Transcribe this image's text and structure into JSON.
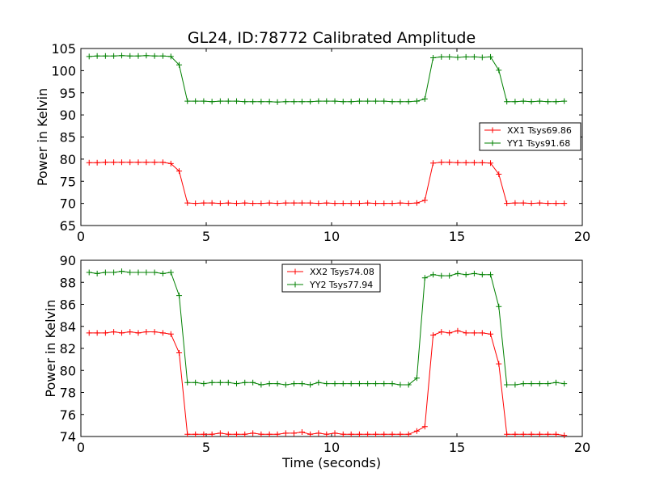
{
  "chart_data": [
    {
      "type": "line",
      "title": "GL24, ID:78772 Calibrated Amplitude",
      "xlabel": "",
      "ylabel": "Power in Kelvin",
      "xlim": [
        0,
        20
      ],
      "ylim": [
        65,
        105
      ],
      "xticks": [
        0,
        5,
        10,
        15,
        20
      ],
      "yticks": [
        65,
        70,
        75,
        80,
        85,
        90,
        95,
        100,
        105
      ],
      "grid": false,
      "legend_position": "center-right",
      "x": [
        0.33,
        0.65,
        0.98,
        1.31,
        1.63,
        1.96,
        2.29,
        2.61,
        2.94,
        3.27,
        3.59,
        3.92,
        4.25,
        4.57,
        4.9,
        5.23,
        5.56,
        5.88,
        6.21,
        6.54,
        6.86,
        7.19,
        7.52,
        7.84,
        8.17,
        8.5,
        8.82,
        9.15,
        9.48,
        9.8,
        10.13,
        10.46,
        10.78,
        11.11,
        11.44,
        11.76,
        12.09,
        12.42,
        12.74,
        13.07,
        13.4,
        13.72,
        14.05,
        14.38,
        14.7,
        15.03,
        15.36,
        15.69,
        16.01,
        16.34,
        16.67,
        16.99,
        17.32,
        17.65,
        17.97,
        18.3,
        18.63,
        18.95,
        19.28
      ],
      "series": [
        {
          "name": "XX1 Tsys69.86",
          "color": "#ff0000",
          "values": [
            79.2,
            79.2,
            79.3,
            79.3,
            79.3,
            79.3,
            79.3,
            79.3,
            79.3,
            79.3,
            79.0,
            77.3,
            70.1,
            70.0,
            70.1,
            70.1,
            70.0,
            70.1,
            70.0,
            70.1,
            70.0,
            70.0,
            70.1,
            70.0,
            70.1,
            70.1,
            70.1,
            70.1,
            70.0,
            70.1,
            70.0,
            70.0,
            70.0,
            70.0,
            70.1,
            70.0,
            70.0,
            70.0,
            70.1,
            70.0,
            70.1,
            70.7,
            79.1,
            79.3,
            79.3,
            79.2,
            79.2,
            79.2,
            79.2,
            79.1,
            76.6,
            70.0,
            70.1,
            70.1,
            70.0,
            70.1,
            70.0,
            70.0,
            70.0
          ]
        },
        {
          "name": "YY1 Tsys91.68",
          "color": "#008000",
          "values": [
            103.2,
            103.3,
            103.3,
            103.3,
            103.4,
            103.3,
            103.3,
            103.4,
            103.3,
            103.3,
            103.2,
            101.3,
            93.1,
            93.1,
            93.1,
            93.0,
            93.1,
            93.1,
            93.1,
            93.0,
            93.0,
            93.0,
            93.0,
            92.9,
            93.0,
            93.0,
            93.0,
            93.0,
            93.1,
            93.1,
            93.1,
            93.0,
            93.0,
            93.1,
            93.1,
            93.1,
            93.1,
            93.0,
            93.0,
            93.0,
            93.1,
            93.6,
            102.9,
            103.1,
            103.1,
            103.0,
            103.1,
            103.1,
            103.0,
            103.1,
            100.1,
            93.0,
            93.0,
            93.1,
            93.0,
            93.1,
            93.0,
            93.0,
            93.1
          ]
        }
      ]
    },
    {
      "type": "line",
      "title": "",
      "xlabel": "Time (seconds)",
      "ylabel": "Power in Kelvin",
      "xlim": [
        0,
        20
      ],
      "ylim": [
        74,
        90
      ],
      "xticks": [
        0,
        5,
        10,
        15,
        20
      ],
      "yticks": [
        74,
        76,
        78,
        80,
        82,
        84,
        86,
        88,
        90
      ],
      "grid": false,
      "legend_position": "top-center",
      "x": [
        0.33,
        0.65,
        0.98,
        1.31,
        1.63,
        1.96,
        2.29,
        2.61,
        2.94,
        3.27,
        3.59,
        3.92,
        4.25,
        4.57,
        4.9,
        5.23,
        5.56,
        5.88,
        6.21,
        6.54,
        6.86,
        7.19,
        7.52,
        7.84,
        8.17,
        8.5,
        8.82,
        9.15,
        9.48,
        9.8,
        10.13,
        10.46,
        10.78,
        11.11,
        11.44,
        11.76,
        12.09,
        12.42,
        12.74,
        13.07,
        13.4,
        13.72,
        14.05,
        14.38,
        14.7,
        15.03,
        15.36,
        15.69,
        16.01,
        16.34,
        16.67,
        16.99,
        17.32,
        17.65,
        17.97,
        18.3,
        18.63,
        18.95,
        19.28
      ],
      "series": [
        {
          "name": "XX2 Tsys74.08",
          "color": "#ff0000",
          "values": [
            83.4,
            83.4,
            83.4,
            83.5,
            83.4,
            83.5,
            83.4,
            83.5,
            83.5,
            83.4,
            83.3,
            81.6,
            74.2,
            74.2,
            74.2,
            74.2,
            74.3,
            74.2,
            74.2,
            74.2,
            74.3,
            74.2,
            74.2,
            74.2,
            74.3,
            74.3,
            74.4,
            74.2,
            74.3,
            74.2,
            74.3,
            74.2,
            74.2,
            74.2,
            74.2,
            74.2,
            74.2,
            74.2,
            74.2,
            74.2,
            74.5,
            74.9,
            83.2,
            83.5,
            83.4,
            83.6,
            83.4,
            83.4,
            83.4,
            83.3,
            80.6,
            74.2,
            74.2,
            74.2,
            74.2,
            74.2,
            74.2,
            74.2,
            74.1
          ]
        },
        {
          "name": "YY2 Tsys77.94",
          "color": "#008000",
          "values": [
            88.9,
            88.8,
            88.9,
            88.9,
            89.0,
            88.9,
            88.9,
            88.9,
            88.9,
            88.8,
            88.9,
            86.8,
            78.9,
            78.9,
            78.8,
            78.9,
            78.9,
            78.9,
            78.8,
            78.9,
            78.9,
            78.7,
            78.8,
            78.8,
            78.7,
            78.8,
            78.8,
            78.7,
            78.9,
            78.8,
            78.8,
            78.8,
            78.8,
            78.8,
            78.8,
            78.8,
            78.8,
            78.8,
            78.7,
            78.7,
            79.3,
            88.4,
            88.7,
            88.6,
            88.6,
            88.8,
            88.7,
            88.8,
            88.7,
            88.7,
            85.8,
            78.7,
            78.7,
            78.8,
            78.8,
            78.8,
            78.8,
            78.9,
            78.8
          ]
        }
      ]
    }
  ]
}
